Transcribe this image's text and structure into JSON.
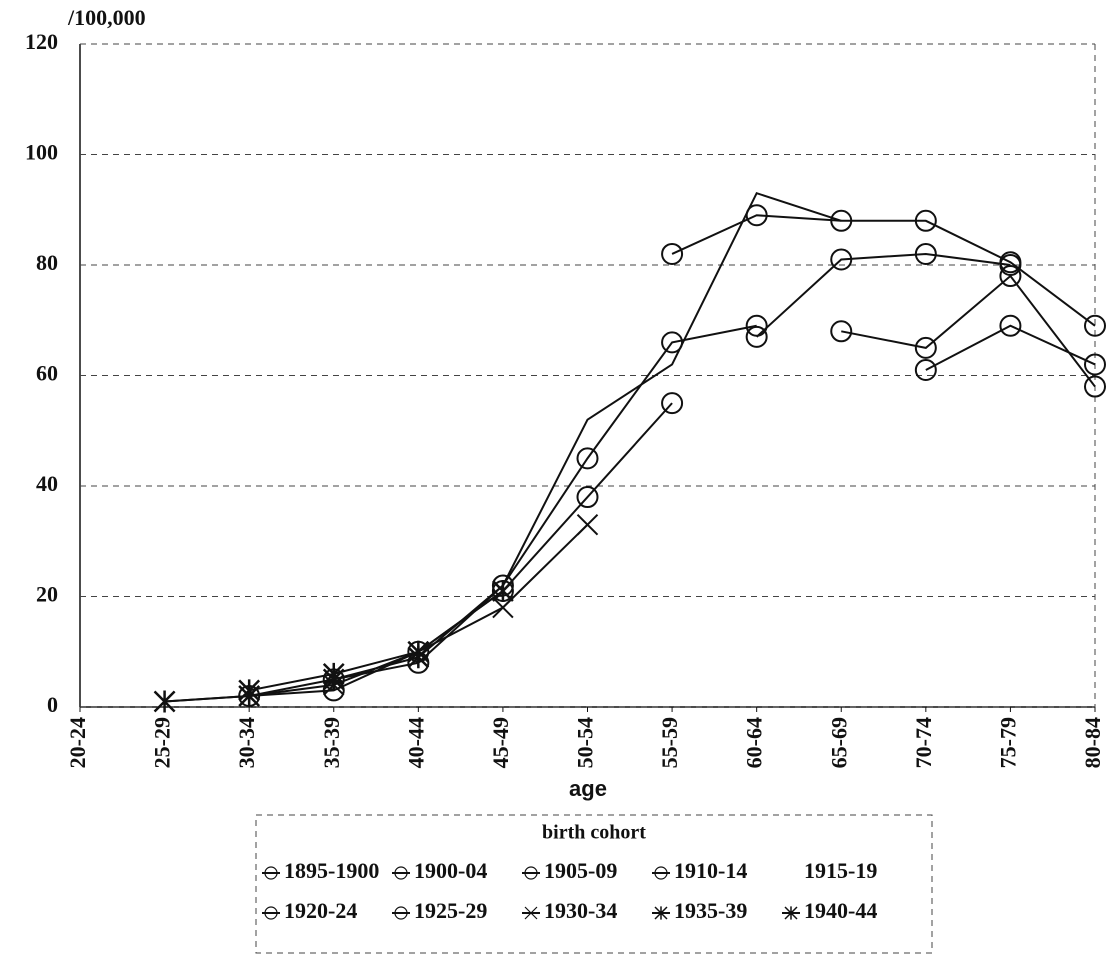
{
  "chart_data": {
    "type": "line",
    "y_axis_label": "/100,000",
    "x_axis_label": "age",
    "legend_title": "birth cohort",
    "categories": [
      "20-24",
      "25-29",
      "30-34",
      "35-39",
      "40-44",
      "45-49",
      "50-54",
      "55-59",
      "60-64",
      "65-69",
      "70-74",
      "75-79",
      "80-84"
    ],
    "ylim": [
      0,
      120
    ],
    "yticks": [
      0,
      20,
      40,
      60,
      80,
      100,
      120
    ],
    "grid": true,
    "series": [
      {
        "name": "1895-1900",
        "color": "#111111",
        "marker": "circle",
        "values": [
          null,
          null,
          null,
          null,
          null,
          null,
          null,
          null,
          null,
          68,
          65,
          78,
          58
        ]
      },
      {
        "name": "1900-04",
        "color": "#111111",
        "marker": "circle",
        "values": [
          null,
          null,
          null,
          null,
          null,
          null,
          null,
          null,
          null,
          null,
          61,
          69,
          62
        ]
      },
      {
        "name": "1905-09",
        "color": "#111111",
        "marker": "circle",
        "values": [
          null,
          null,
          null,
          null,
          null,
          null,
          null,
          null,
          67,
          81,
          82,
          80,
          null
        ]
      },
      {
        "name": "1910-14",
        "color": "#111111",
        "marker": "circle",
        "values": [
          null,
          null,
          null,
          null,
          null,
          null,
          null,
          82,
          89,
          88,
          88,
          80.5,
          69
        ]
      },
      {
        "name": "1915-19",
        "color": "#111111",
        "marker": "none",
        "values": [
          null,
          null,
          null,
          null,
          9,
          22,
          52,
          62,
          93,
          88,
          null,
          null,
          null
        ]
      },
      {
        "name": "1920-24",
        "color": "#111111",
        "marker": "circle",
        "values": [
          null,
          null,
          null,
          5,
          8,
          22,
          45,
          66,
          69,
          null,
          null,
          null,
          null
        ]
      },
      {
        "name": "1925-29",
        "color": "#111111",
        "marker": "circle",
        "values": [
          null,
          null,
          2,
          3,
          10,
          21,
          38,
          55,
          null,
          null,
          null,
          null,
          null
        ]
      },
      {
        "name": "1930-34",
        "color": "#111111",
        "marker": "x",
        "values": [
          null,
          1,
          2,
          4,
          10,
          18,
          33,
          null,
          null,
          null,
          null,
          null,
          null
        ]
      },
      {
        "name": "1935-39",
        "color": "#111111",
        "marker": "star",
        "values": [
          null,
          null,
          3,
          6,
          10,
          21,
          null,
          null,
          null,
          null,
          null,
          null,
          null
        ]
      },
      {
        "name": "1940-44",
        "color": "#111111",
        "marker": "star",
        "values": [
          null,
          1,
          2,
          5,
          9,
          null,
          null,
          null,
          null,
          null,
          null,
          null,
          null
        ]
      }
    ]
  }
}
